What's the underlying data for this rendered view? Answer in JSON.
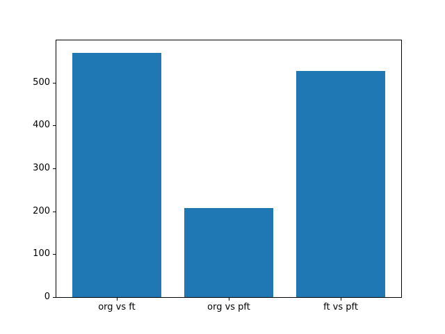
{
  "chart_data": {
    "type": "bar",
    "categories": [
      "org vs ft",
      "org vs pft",
      "ft vs pft"
    ],
    "values": [
      570,
      207,
      527
    ],
    "title": "",
    "xlabel": "",
    "ylabel": "",
    "ylim": [
      0,
      598.5
    ],
    "xlim": [
      -0.54,
      2.54
    ],
    "yticks": [
      0,
      100,
      200,
      300,
      400,
      500
    ],
    "bar_width": 0.8,
    "bar_color": "#1f77b4",
    "spine_color": "#000000",
    "background_color": "#ffffff",
    "grid": false,
    "legend": null
  }
}
